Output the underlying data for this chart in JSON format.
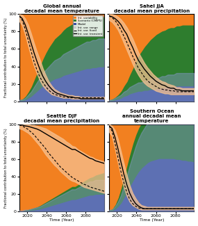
{
  "years": [
    2012,
    2015,
    2018,
    2021,
    2024,
    2027,
    2030,
    2033,
    2036,
    2039,
    2042,
    2045,
    2048,
    2051,
    2054,
    2057,
    2060,
    2063,
    2066,
    2069,
    2072,
    2075,
    2078,
    2081,
    2084,
    2087,
    2090,
    2093,
    2096,
    2099
  ],
  "color_iv": "#F28020",
  "color_sc": "#2E7D2E",
  "color_md": "#3A4FA0",
  "color_iv_light": "#F5C090",
  "color_md_light": "#8899CC",
  "background": "#D0D0D0",
  "titles": [
    "Global annual\ndecadal mean temperature",
    "Sahel JJA\ndecadal mean precipitation",
    "Seattle DJF\ndecadal mean precipitation",
    "Southern Ocean\nannual decadal mean\ntemperature"
  ],
  "xlim": [
    2012,
    2099
  ],
  "ylim": [
    0,
    100
  ],
  "yticks": [
    0,
    20,
    40,
    60,
    80,
    100
  ],
  "xticks": [
    2020,
    2040,
    2060,
    2080
  ],
  "ylabel": "Fractional contribution to total uncertainty (%)",
  "xlabel": "Time (Year)",
  "panel1": {
    "md": [
      1,
      1,
      2,
      4,
      6,
      9,
      12,
      15,
      18,
      20,
      22,
      24,
      26,
      27,
      28,
      30,
      31,
      32,
      33,
      34,
      35,
      36,
      37,
      38,
      38,
      39,
      39,
      40,
      40,
      40
    ],
    "sc": [
      1,
      2,
      4,
      7,
      11,
      16,
      21,
      26,
      31,
      36,
      40,
      43,
      46,
      48,
      50,
      52,
      54,
      55,
      56,
      57,
      58,
      59,
      59,
      59,
      59,
      59,
      59,
      58,
      58,
      57
    ],
    "iv_transient": [
      98,
      95,
      88,
      78,
      67,
      56,
      46,
      37,
      29,
      23,
      18,
      14,
      11,
      9,
      8,
      7,
      6,
      5,
      5,
      4,
      4,
      3,
      3,
      3,
      3,
      3,
      3,
      3,
      3,
      3
    ],
    "iv_fixed": [
      98,
      93,
      83,
      71,
      58,
      46,
      36,
      28,
      22,
      17,
      13,
      10,
      8,
      7,
      6,
      5,
      5,
      4,
      4,
      4,
      4,
      4,
      4,
      4,
      4,
      4,
      4,
      4,
      4,
      4
    ],
    "iv_range_lo": [
      92,
      87,
      77,
      64,
      52,
      41,
      32,
      24,
      18,
      14,
      11,
      8,
      7,
      6,
      5,
      4,
      4,
      4,
      3,
      3,
      3,
      3,
      3,
      3,
      3,
      3,
      3,
      3,
      3,
      3
    ],
    "iv_range_hi": [
      100,
      99,
      95,
      88,
      78,
      67,
      57,
      48,
      38,
      30,
      23,
      18,
      14,
      12,
      10,
      9,
      8,
      7,
      7,
      6,
      6,
      5,
      5,
      5,
      5,
      5,
      5,
      5,
      5,
      5
    ]
  },
  "panel2": {
    "md": [
      1,
      1,
      2,
      3,
      4,
      6,
      7,
      9,
      10,
      11,
      12,
      12,
      13,
      13,
      14,
      14,
      15,
      15,
      16,
      16,
      17,
      17,
      17,
      18,
      18,
      18,
      18,
      18,
      18,
      18
    ],
    "sc": [
      1,
      2,
      3,
      5,
      8,
      12,
      16,
      22,
      28,
      35,
      41,
      46,
      50,
      54,
      57,
      60,
      62,
      64,
      65,
      66,
      67,
      68,
      68,
      69,
      69,
      70,
      70,
      70,
      70,
      70
    ],
    "iv_transient": [
      98,
      97,
      95,
      92,
      88,
      82,
      77,
      69,
      62,
      54,
      47,
      42,
      37,
      33,
      29,
      26,
      23,
      21,
      19,
      18,
      16,
      15,
      15,
      13,
      13,
      12,
      12,
      12,
      12,
      12
    ],
    "iv_fixed": [
      98,
      96,
      93,
      88,
      82,
      75,
      68,
      60,
      52,
      45,
      38,
      33,
      28,
      24,
      21,
      19,
      17,
      15,
      14,
      13,
      13,
      12,
      12,
      11,
      11,
      11,
      11,
      11,
      11,
      11
    ],
    "iv_range_lo": [
      93,
      91,
      87,
      82,
      75,
      67,
      59,
      51,
      43,
      36,
      30,
      25,
      21,
      18,
      16,
      14,
      12,
      11,
      10,
      9,
      9,
      8,
      8,
      8,
      8,
      8,
      8,
      8,
      8,
      8
    ],
    "iv_range_hi": [
      100,
      100,
      99,
      97,
      94,
      90,
      85,
      79,
      72,
      64,
      56,
      50,
      44,
      39,
      35,
      31,
      28,
      25,
      23,
      22,
      20,
      19,
      18,
      16,
      16,
      15,
      15,
      15,
      15,
      15
    ]
  },
  "panel3": {
    "md": [
      0.5,
      0.5,
      1,
      1,
      1.5,
      2,
      2.5,
      3,
      4,
      5,
      6,
      7,
      8,
      9,
      10,
      11,
      12,
      13,
      14,
      14,
      15,
      16,
      17,
      18,
      19,
      19,
      20,
      20,
      20,
      20
    ],
    "sc": [
      0.5,
      0.5,
      1,
      1.5,
      2,
      2.5,
      3,
      4,
      5,
      6,
      7,
      8,
      9,
      10,
      11,
      12,
      13,
      14,
      15,
      15,
      16,
      17,
      18,
      19,
      20,
      21,
      22,
      23,
      24,
      25
    ],
    "iv_transient": [
      99,
      99,
      98,
      97.5,
      96.5,
      95.5,
      94.5,
      93,
      91,
      89,
      87,
      85,
      83,
      81,
      79,
      77,
      75,
      73,
      71,
      71,
      69,
      67,
      65,
      63,
      61,
      60,
      58,
      57,
      56,
      55
    ],
    "iv_fixed": [
      99,
      98,
      96,
      94,
      91,
      88,
      84,
      80,
      76,
      72,
      67,
      63,
      59,
      55,
      51,
      48,
      45,
      42,
      39,
      37,
      35,
      33,
      31,
      30,
      28,
      27,
      26,
      25,
      24,
      23
    ],
    "iv_range_lo": [
      95,
      94,
      92,
      90,
      87,
      83,
      79,
      75,
      70,
      65,
      61,
      57,
      53,
      50,
      46,
      43,
      40,
      37,
      35,
      34,
      32,
      30,
      28,
      27,
      26,
      25,
      24,
      23,
      22,
      21
    ],
    "iv_range_hi": [
      100,
      100,
      100,
      100,
      99,
      99,
      98,
      97,
      96,
      95,
      93,
      91,
      89,
      87,
      85,
      83,
      80,
      78,
      75,
      74,
      71,
      69,
      67,
      65,
      63,
      62,
      60,
      59,
      58,
      57
    ]
  },
  "panel4": {
    "md": [
      1,
      1,
      3,
      6,
      10,
      16,
      22,
      29,
      35,
      41,
      46,
      50,
      53,
      56,
      58,
      59,
      60,
      61,
      61,
      61,
      61,
      61,
      61,
      60,
      60,
      59,
      59,
      58,
      58,
      57
    ],
    "sc": [
      1,
      2,
      5,
      10,
      17,
      24,
      31,
      37,
      43,
      47,
      50,
      52,
      54,
      54,
      55,
      55,
      55,
      55,
      55,
      55,
      55,
      55,
      55,
      55,
      55,
      55,
      55,
      55,
      55,
      55
    ],
    "iv_transient": [
      98,
      95,
      85,
      72,
      57,
      43,
      31,
      21,
      14,
      9,
      6,
      4,
      3,
      3,
      3,
      3,
      3,
      3,
      3,
      3,
      3,
      3,
      3,
      3,
      3,
      3,
      3,
      3,
      3,
      3
    ],
    "iv_fixed": [
      98,
      92,
      78,
      62,
      46,
      33,
      22,
      14,
      9,
      6,
      4,
      3,
      3,
      3,
      3,
      3,
      3,
      3,
      3,
      3,
      3,
      3,
      3,
      3,
      3,
      3,
      3,
      3,
      3,
      3
    ],
    "iv_range_lo": [
      91,
      86,
      72,
      56,
      41,
      28,
      18,
      11,
      7,
      5,
      3,
      2,
      2,
      2,
      2,
      2,
      2,
      2,
      2,
      2,
      2,
      2,
      2,
      2,
      2,
      2,
      2,
      2,
      2,
      2
    ],
    "iv_range_hi": [
      100,
      98,
      93,
      83,
      69,
      55,
      42,
      30,
      21,
      15,
      10,
      7,
      6,
      5,
      5,
      5,
      5,
      5,
      5,
      5,
      5,
      5,
      5,
      5,
      5,
      5,
      5,
      5,
      5,
      5
    ]
  }
}
